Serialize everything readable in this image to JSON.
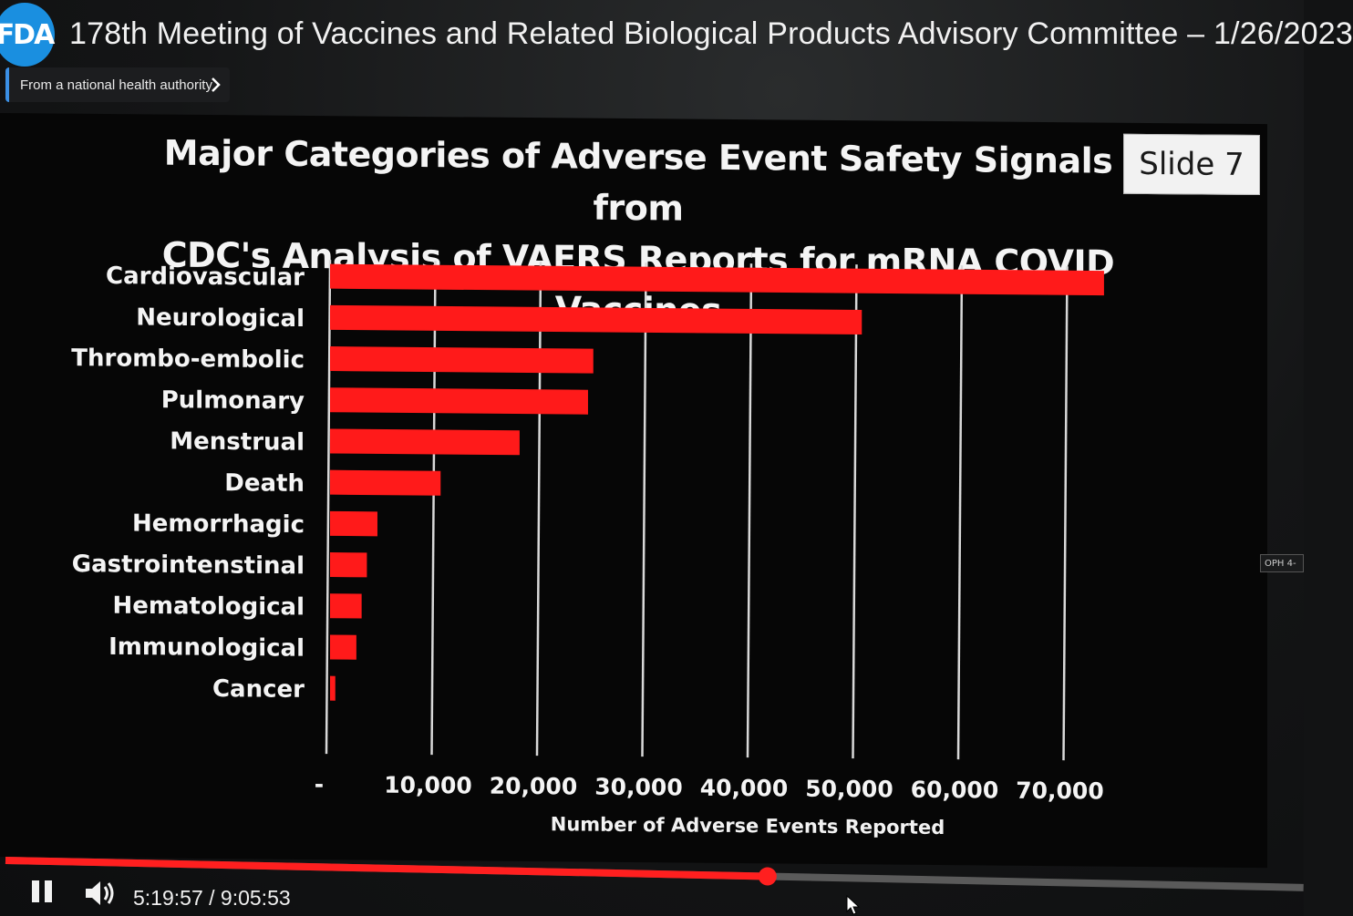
{
  "player": {
    "channel_logo": "FDA",
    "title": "178th Meeting of Vaccines and Related Biological Products Advisory Committee – 1/26/2023",
    "source_label": "From a national health authority",
    "side_tag": "OPH 4-",
    "time_current": "5:19:57",
    "time_separator": " / ",
    "time_total": "9:05:53",
    "progress_fraction": 0.587,
    "accent_color": "#ff1f1f"
  },
  "slide": {
    "title_line1": "Major Categories of Adverse Event Safety Signals from",
    "title_line2": "CDC's Analysis of VAERS Reports for mRNA COVID Vaccines",
    "badge": "Slide 7"
  },
  "chart_data": {
    "type": "bar",
    "orientation": "horizontal",
    "categories": [
      "Cardiovascular",
      "Neurological",
      "Thrombo-embolic",
      "Pulmonary",
      "Menstrual",
      "Death",
      "Hemorrhagic",
      "Gastrointenstinal",
      "Hematological",
      "Immunological",
      "Cancer"
    ],
    "values": [
      73500,
      50500,
      25000,
      24500,
      18000,
      10500,
      4500,
      3500,
      3000,
      2500,
      500
    ],
    "xlabel": "Number of Adverse Events Reported",
    "ylabel": "",
    "xlim": [
      0,
      70000
    ],
    "ticks": [
      "-",
      "10,000",
      "20,000",
      "30,000",
      "40,000",
      "50,000",
      "60,000",
      "70,000"
    ],
    "grid": true,
    "bar_color": "#ff1a1a",
    "background": "#060606"
  }
}
